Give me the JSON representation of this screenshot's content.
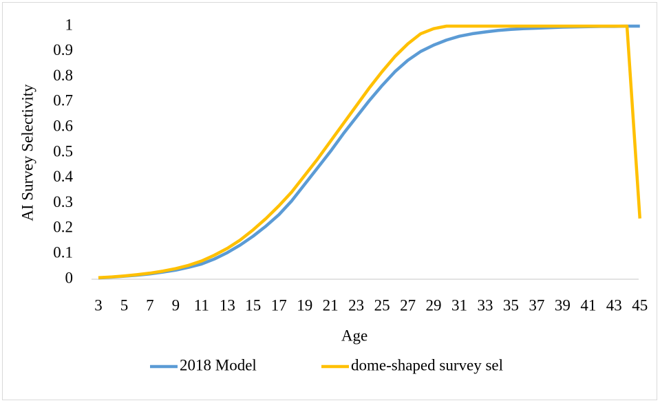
{
  "chart_data": {
    "type": "line",
    "y_label": "AI Survey Selectivity",
    "x_label": "Age",
    "categories": [
      "3",
      null,
      "5",
      null,
      "7",
      null,
      "9",
      null,
      "11",
      null,
      "13",
      null,
      "15",
      null,
      "17",
      null,
      "19",
      null,
      "21",
      null,
      "23",
      null,
      "25",
      null,
      "27",
      null,
      "29",
      null,
      "31",
      null,
      "33",
      null,
      "35",
      null,
      "37",
      null,
      "39",
      null,
      "41",
      null,
      "43",
      null,
      "45"
    ],
    "series": [
      {
        "name": "2018 Model",
        "color": "#5b9bd5",
        "values": [
          0.005,
          0.008,
          0.012,
          0.016,
          0.021,
          0.028,
          0.036,
          0.047,
          0.06,
          0.08,
          0.105,
          0.135,
          0.17,
          0.21,
          0.255,
          0.31,
          0.375,
          0.44,
          0.505,
          0.575,
          0.64,
          0.705,
          0.765,
          0.82,
          0.865,
          0.9,
          0.925,
          0.945,
          0.96,
          0.97,
          0.977,
          0.983,
          0.987,
          0.99,
          0.992,
          0.994,
          0.996,
          0.997,
          0.998,
          0.999,
          0.999,
          1,
          1
        ]
      },
      {
        "name": "dome-shaped survey sel",
        "color": "#ffc000",
        "values": [
          0.006,
          0.009,
          0.013,
          0.018,
          0.024,
          0.032,
          0.042,
          0.055,
          0.072,
          0.095,
          0.122,
          0.155,
          0.195,
          0.24,
          0.29,
          0.345,
          0.41,
          0.475,
          0.545,
          0.615,
          0.685,
          0.755,
          0.82,
          0.88,
          0.93,
          0.97,
          0.99,
          1,
          1,
          1,
          1,
          1,
          1,
          1,
          1,
          1,
          1,
          1,
          1,
          1,
          1,
          1,
          0.24
        ]
      }
    ],
    "ylim": [
      0,
      1
    ],
    "yticks": [
      0,
      0.1,
      0.2,
      0.3,
      0.4,
      0.5,
      0.6,
      0.7,
      0.8,
      0.9,
      1
    ],
    "grid": false,
    "legend": "bottom"
  }
}
